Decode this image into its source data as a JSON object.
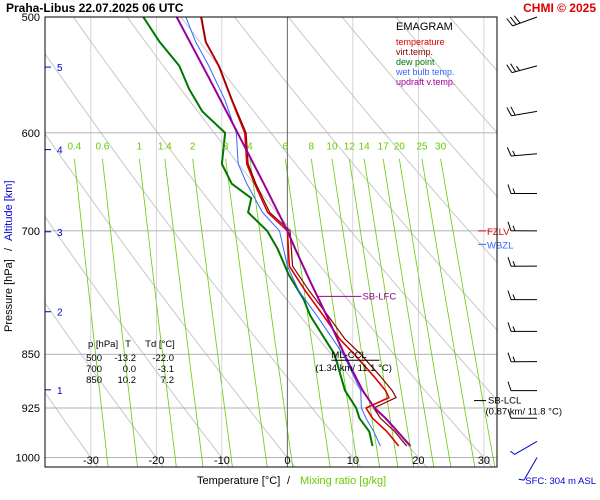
{
  "header": {
    "title": "Praha-Libus    22.07.2025 06 UTC",
    "copyright": "CHMI © 2025"
  },
  "colors": {
    "temperature": "#dd0000",
    "virt_temp": "#880000",
    "dew_point": "#007700",
    "wet_bulb": "#3366ff",
    "updraft": "#990099",
    "mixing_ratio": "#66cc00",
    "adiabat": "#c8c8c8",
    "altitude": "#0000cc",
    "wind": "#000000",
    "wind_sfc": "#0000cc"
  },
  "chart_data": {
    "type": "line",
    "diagram": "emagram",
    "title": "EMAGRAM",
    "xlabel_temp": "Temperature [°C]",
    "xlabel_sep": "/",
    "xlabel_mix": "Mixing ratio [g/kg]",
    "ylabel_pressure": "Pressure [hPa]",
    "ylabel_sep": "/",
    "ylabel_alt": "Altitude [km]",
    "xlim": [
      -37,
      32
    ],
    "ylim": [
      1015,
      500
    ],
    "y_scale": "log",
    "x_ticks": [
      -30,
      -20,
      -10,
      0,
      10,
      20,
      30
    ],
    "pressure_ticks": [
      500,
      600,
      700,
      850,
      925,
      1000
    ],
    "altitude_ticks": [
      {
        "km": 1,
        "p": 899
      },
      {
        "km": 2,
        "p": 795
      },
      {
        "km": 3,
        "p": 701
      },
      {
        "km": 4,
        "p": 616
      },
      {
        "km": 5,
        "p": 541
      }
    ],
    "mixing_ratio_lines": [
      "0.4",
      "0.6",
      "1",
      "1.4",
      "2",
      "3",
      "4",
      "6",
      "8",
      "10",
      "12",
      "14",
      "17",
      "20",
      "25",
      "30"
    ],
    "legend": [
      {
        "label": "temperature",
        "key": "temperature"
      },
      {
        "label": "virt.temp.",
        "key": "virt_temp"
      },
      {
        "label": "dew point",
        "key": "dew_point"
      },
      {
        "label": "wet bulb temp.",
        "key": "wet_bulb"
      },
      {
        "label": "updraft v.temp.",
        "key": "updraft"
      }
    ],
    "legend_position": "top-right",
    "series": [
      {
        "name": "temperature",
        "points": [
          [
            982,
            17.0
          ],
          [
            960,
            15.2
          ],
          [
            940,
            13.0
          ],
          [
            925,
            12.0
          ],
          [
            910,
            15.5
          ],
          [
            900,
            15.0
          ],
          [
            880,
            13.2
          ],
          [
            850,
            10.2
          ],
          [
            830,
            8.0
          ],
          [
            800,
            5.5
          ],
          [
            770,
            2.8
          ],
          [
            740,
            0.3
          ],
          [
            700,
            0.0
          ],
          [
            680,
            -3.0
          ],
          [
            650,
            -5.0
          ],
          [
            630,
            -6.2
          ],
          [
            600,
            -6.5
          ],
          [
            570,
            -8.5
          ],
          [
            540,
            -10.5
          ],
          [
            520,
            -12.5
          ],
          [
            500,
            -13.2
          ]
        ]
      },
      {
        "name": "virt.temp.",
        "points": [
          [
            982,
            18.2
          ],
          [
            960,
            16.4
          ],
          [
            940,
            14.2
          ],
          [
            925,
            13.2
          ],
          [
            910,
            16.6
          ],
          [
            900,
            16.0
          ],
          [
            880,
            14.2
          ],
          [
            850,
            11.2
          ],
          [
            830,
            8.8
          ],
          [
            800,
            6.2
          ],
          [
            770,
            3.4
          ],
          [
            740,
            0.8
          ],
          [
            700,
            0.4
          ],
          [
            680,
            -2.7
          ],
          [
            650,
            -4.8
          ],
          [
            630,
            -6.0
          ],
          [
            600,
            -6.3
          ],
          [
            570,
            -8.4
          ],
          [
            540,
            -10.4
          ],
          [
            520,
            -12.4
          ],
          [
            500,
            -13.1
          ]
        ]
      },
      {
        "name": "dew point",
        "points": [
          [
            982,
            13.0
          ],
          [
            960,
            12.5
          ],
          [
            940,
            11.0
          ],
          [
            925,
            10.5
          ],
          [
            900,
            8.8
          ],
          [
            850,
            7.2
          ],
          [
            820,
            5.0
          ],
          [
            800,
            3.5
          ],
          [
            780,
            2.5
          ],
          [
            750,
            0.2
          ],
          [
            720,
            -1.5
          ],
          [
            700,
            -3.1
          ],
          [
            680,
            -6.0
          ],
          [
            665,
            -5.5
          ],
          [
            650,
            -8.5
          ],
          [
            630,
            -10.0
          ],
          [
            600,
            -9.5
          ],
          [
            580,
            -13.0
          ],
          [
            560,
            -15.0
          ],
          [
            540,
            -16.5
          ],
          [
            520,
            -19.5
          ],
          [
            500,
            -22.0
          ]
        ]
      },
      {
        "name": "wet bulb temp.",
        "points": [
          [
            982,
            14.2
          ],
          [
            960,
            13.2
          ],
          [
            940,
            12.0
          ],
          [
            925,
            11.3
          ],
          [
            900,
            11.2
          ],
          [
            850,
            8.5
          ],
          [
            800,
            4.5
          ],
          [
            770,
            1.8
          ],
          [
            740,
            0.0
          ],
          [
            700,
            -1.2
          ],
          [
            680,
            -3.8
          ],
          [
            650,
            -6.2
          ],
          [
            630,
            -7.5
          ],
          [
            600,
            -7.8
          ],
          [
            570,
            -9.5
          ],
          [
            540,
            -12.0
          ],
          [
            520,
            -14.0
          ],
          [
            500,
            -15.5
          ]
        ]
      },
      {
        "name": "updraft v.temp.",
        "points": [
          [
            982,
            18.8
          ],
          [
            940,
            15.0
          ],
          [
            925,
            13.3
          ],
          [
            900,
            11.5
          ],
          [
            870,
            9.8
          ],
          [
            850,
            8.7
          ],
          [
            800,
            6.0
          ],
          [
            760,
            3.6
          ],
          [
            720,
            1.2
          ],
          [
            700,
            0.0
          ],
          [
            650,
            -3.6
          ],
          [
            600,
            -7.6
          ],
          [
            550,
            -12.0
          ],
          [
            500,
            -16.9
          ]
        ]
      }
    ],
    "levels": [
      {
        "label": "FZLV",
        "p": 700,
        "key": "temperature"
      },
      {
        "label": "WBZL",
        "p": 715,
        "key": "wet_bulb"
      },
      {
        "label": "SB-LFC",
        "p": 776,
        "t": 5.2,
        "key": "updraft"
      },
      {
        "label": "ML-CCL",
        "sub": "(1.34 km/ 11.1 °C)",
        "p": 850,
        "t": 11.0
      },
      {
        "label": "SB-LCL",
        "sub": "(0.87 km/ 11.8 °C)",
        "p": 910,
        "t": 12.0
      }
    ],
    "table": {
      "headers": [
        "p [hPa]",
        "T",
        "Td [°C]"
      ],
      "rows": [
        [
          "500",
          "-13.2",
          "-22.0"
        ],
        [
          "700",
          "0.0",
          "-3.1"
        ],
        [
          "850",
          "10.2",
          "7.2"
        ]
      ]
    },
    "wind": [
      {
        "p": 500,
        "dir": 250,
        "speed": 30
      },
      {
        "p": 540,
        "dir": 255,
        "speed": 25
      },
      {
        "p": 580,
        "dir": 260,
        "speed": 20
      },
      {
        "p": 620,
        "dir": 265,
        "speed": 15
      },
      {
        "p": 660,
        "dir": 270,
        "speed": 15
      },
      {
        "p": 700,
        "dir": 270,
        "speed": 15
      },
      {
        "p": 740,
        "dir": 270,
        "speed": 15
      },
      {
        "p": 780,
        "dir": 270,
        "speed": 15
      },
      {
        "p": 820,
        "dir": 270,
        "speed": 15
      },
      {
        "p": 860,
        "dir": 270,
        "speed": 15
      },
      {
        "p": 900,
        "dir": 270,
        "speed": 10
      },
      {
        "p": 940,
        "dir": 270,
        "speed": 10
      },
      {
        "p": 975,
        "dir": 240,
        "speed": 5
      },
      {
        "p": 1000,
        "dir": 210,
        "speed": 5
      }
    ],
    "surface": "SFC: 304 m ASL"
  }
}
